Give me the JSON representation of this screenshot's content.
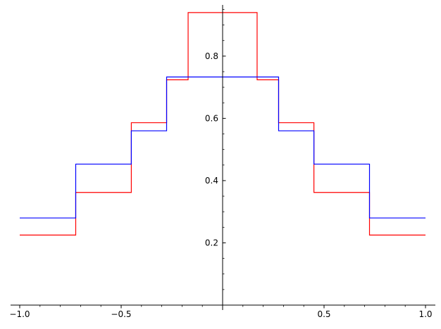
{
  "chart_data": {
    "type": "line",
    "step": true,
    "title": "",
    "xlabel": "",
    "ylabel": "",
    "xlim": [
      -1.0,
      1.0
    ],
    "ylim": [
      0.0,
      0.96
    ],
    "grid": false,
    "axes_at_origin": true,
    "x_ticks": [
      {
        "value": -1.0,
        "label": "−1.0"
      },
      {
        "value": -0.5,
        "label": "−0.5"
      },
      {
        "value": 0.5,
        "label": "0.5"
      },
      {
        "value": 1.0,
        "label": "1.0"
      }
    ],
    "y_ticks": [
      {
        "value": 0.2,
        "label": "0.2"
      },
      {
        "value": 0.4,
        "label": "0.4"
      },
      {
        "value": 0.6,
        "label": "0.6"
      },
      {
        "value": 0.8,
        "label": "0.8"
      }
    ],
    "series": [
      {
        "color": "#ff0000",
        "x": [
          -1.0,
          -0.724,
          -0.724,
          -0.45,
          -0.45,
          -0.276,
          -0.276,
          -0.17,
          -0.17,
          0.17,
          0.17,
          0.276,
          0.276,
          0.45,
          0.45,
          0.724,
          0.724,
          1.0
        ],
        "y": [
          0.225,
          0.225,
          0.362,
          0.362,
          0.586,
          0.586,
          0.724,
          0.724,
          0.94,
          0.94,
          0.724,
          0.724,
          0.586,
          0.586,
          0.362,
          0.362,
          0.225,
          0.225
        ]
      },
      {
        "color": "#0000ff",
        "x": [
          -1.0,
          -0.724,
          -0.724,
          -0.45,
          -0.45,
          -0.276,
          -0.276,
          0.276,
          0.276,
          0.45,
          0.45,
          0.724,
          0.724,
          1.0
        ],
        "y": [
          0.28,
          0.28,
          0.453,
          0.453,
          0.56,
          0.56,
          0.733,
          0.733,
          0.56,
          0.56,
          0.453,
          0.453,
          0.28,
          0.28
        ]
      }
    ]
  }
}
